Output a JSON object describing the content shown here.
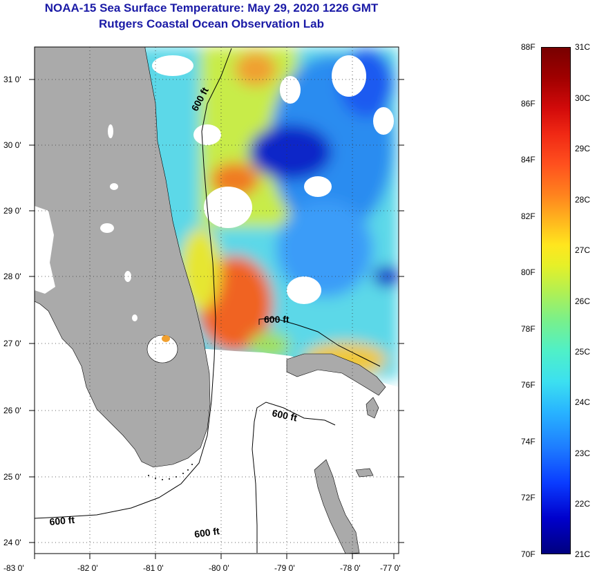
{
  "header": {
    "title_line1": "NOAA-15 Sea Surface Temperature:  May 29, 2020 1226 GMT",
    "title_line2": "Rutgers Coastal Ocean Observation Lab"
  },
  "map": {
    "lon_labels": [
      "-83 0'",
      "-82 0'",
      "-81 0'",
      "-80 0'",
      "-79 0'",
      "-78 0'",
      "-77 0'"
    ],
    "lat_labels": [
      "31 0'",
      "30 0'",
      "29 0'",
      "28 0'",
      "27 0'",
      "26 0'",
      "25 0'",
      "24 0'"
    ],
    "contour_labels": [
      "600 ft",
      "600 ft",
      "600 ft",
      "600 ft",
      "600 ft"
    ],
    "colors": {
      "land": "#aaaaaa",
      "frame": "#000000",
      "title": "#1a1aa6"
    }
  },
  "colorbar": {
    "fahrenheit": [
      "88F",
      "86F",
      "84F",
      "82F",
      "80F",
      "78F",
      "76F",
      "74F",
      "72F",
      "70F"
    ],
    "celsius": [
      "31C",
      "30C",
      "29C",
      "28C",
      "27C",
      "26C",
      "25C",
      "24C",
      "23C",
      "22C",
      "21C"
    ]
  }
}
